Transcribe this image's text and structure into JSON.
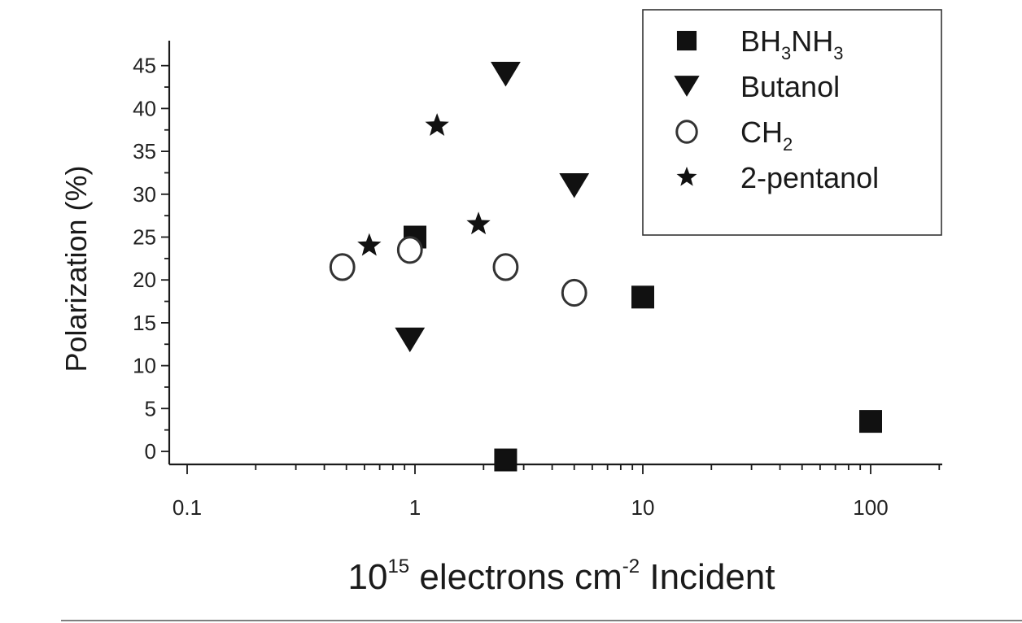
{
  "chart_data": {
    "type": "scatter",
    "xscale": "log",
    "xlim": [
      0.1,
      200
    ],
    "ylim": [
      -1,
      47
    ],
    "x_ticks": [
      0.1,
      1,
      10,
      100
    ],
    "x_tick_labels": [
      "0.1",
      "1",
      "10",
      "100"
    ],
    "y_ticks": [
      0,
      5,
      10,
      15,
      20,
      25,
      30,
      35,
      40,
      45
    ],
    "y_tick_labels": [
      "0",
      "5",
      "10",
      "15",
      "20",
      "25",
      "30",
      "35",
      "40",
      "45"
    ],
    "ylabel": "Polarization (%)",
    "xlabel": {
      "base": "10",
      "base_exp": "15",
      "mid": " electrons cm",
      "mid_exp": "-2",
      "tail": " Incident"
    },
    "legend_position": "top-right",
    "grid": false,
    "series": [
      {
        "name": "BH3NH3",
        "label_parts": [
          [
            "BH",
            ""
          ],
          [
            "3",
            "sub"
          ],
          [
            "NH",
            ""
          ],
          [
            "3",
            "sub"
          ]
        ],
        "marker": "square",
        "filled": true,
        "x": [
          1,
          10,
          100,
          2.5
        ],
        "y": [
          25,
          18,
          3.5,
          -1
        ]
      },
      {
        "name": "Butanol",
        "label_parts": [
          [
            "Butanol",
            ""
          ]
        ],
        "marker": "triangle-down",
        "filled": true,
        "x": [
          2.5,
          5,
          0.95
        ],
        "y": [
          44,
          31,
          13
        ]
      },
      {
        "name": "CH2",
        "label_parts": [
          [
            "CH",
            ""
          ],
          [
            "2",
            "sub"
          ]
        ],
        "marker": "circle",
        "filled": false,
        "x": [
          0.48,
          0.95,
          2.5,
          5
        ],
        "y": [
          21.5,
          23.5,
          21.5,
          18.5
        ]
      },
      {
        "name": "2-pentanol",
        "label_parts": [
          [
            "2-pentanol",
            ""
          ]
        ],
        "marker": "star",
        "filled": true,
        "x": [
          0.63,
          1.25,
          1.9
        ],
        "y": [
          24,
          38,
          26.5
        ]
      }
    ],
    "colors": {
      "marker": "#111111",
      "axis": "#1a1a1a",
      "background": "#ffffff"
    }
  }
}
